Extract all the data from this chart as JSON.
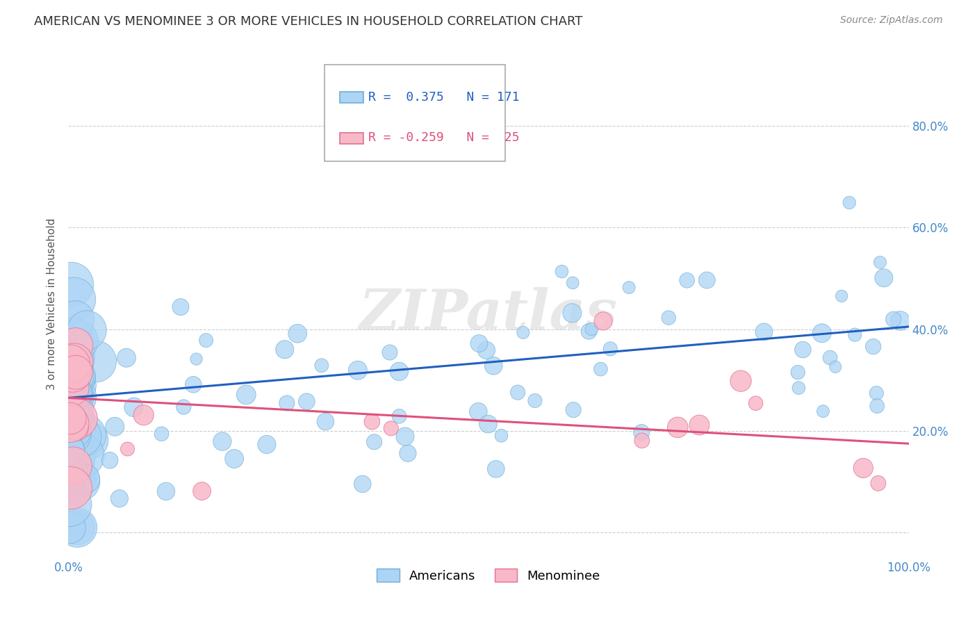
{
  "title": "AMERICAN VS MENOMINEE 3 OR MORE VEHICLES IN HOUSEHOLD CORRELATION CHART",
  "source": "Source: ZipAtlas.com",
  "ylabel": "3 or more Vehicles in Household",
  "xlim": [
    0,
    1
  ],
  "ylim": [
    -0.05,
    0.95
  ],
  "ytick_positions": [
    0.0,
    0.2,
    0.4,
    0.6,
    0.8
  ],
  "yticklabels": [
    "",
    "20.0%",
    "40.0%",
    "60.0%",
    "80.0%"
  ],
  "americans_R": 0.375,
  "americans_N": 171,
  "menominee_R": -0.259,
  "menominee_N": 25,
  "americans_color": "#add4f5",
  "americans_edge_color": "#6baed6",
  "americans_line_color": "#2060c0",
  "menominee_color": "#f9b8c8",
  "menominee_edge_color": "#e07090",
  "menominee_line_color": "#e0507a",
  "watermark": "ZIPatlas",
  "background_color": "#ffffff",
  "grid_color": "#cccccc",
  "title_fontsize": 13,
  "axis_label_fontsize": 11,
  "tick_fontsize": 12,
  "legend_fontsize": 13,
  "source_fontsize": 10,
  "tick_color": "#4488cc"
}
